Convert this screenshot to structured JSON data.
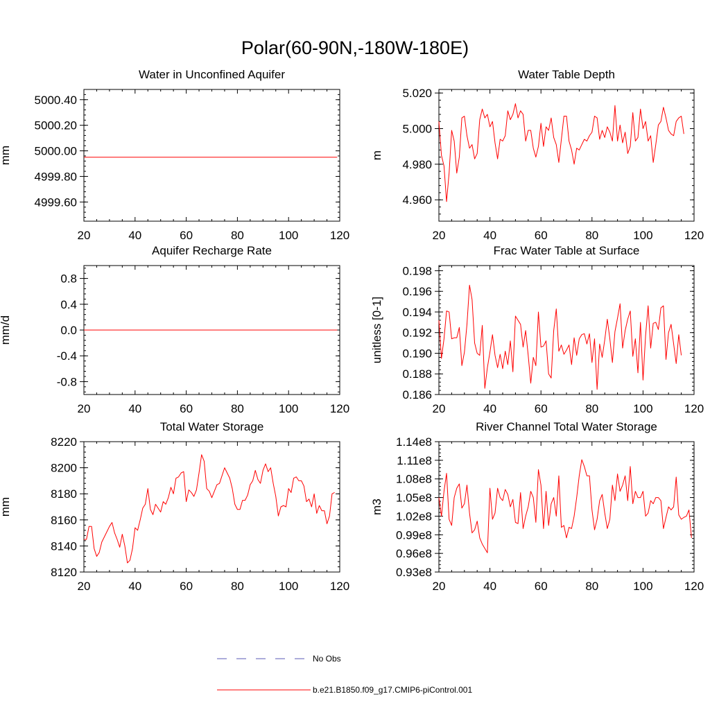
{
  "figure": {
    "title": "Polar(60-90N,-180W-180E)"
  },
  "colors": {
    "model": "#ff0000",
    "obs": "#5a5ab4",
    "axis": "#000000"
  },
  "legend": {
    "obs_label": "No Obs",
    "model_label": "b.e21.B1850.f09_g17.CMIP6-piControl.001"
  },
  "chart_data": [
    {
      "type": "line",
      "title": "Water in Unconfined Aquifer",
      "xlabel": "",
      "ylabel": "mm",
      "xlim": [
        20,
        120
      ],
      "ylim": [
        4999.45,
        5000.48
      ],
      "xticks": [
        20,
        40,
        60,
        80,
        100,
        120
      ],
      "xticklabels": [
        "20",
        "40",
        "60",
        "80",
        "100",
        "120"
      ],
      "yticks": [
        4999.6,
        4999.8,
        5000.0,
        5000.2,
        5000.4
      ],
      "yticklabels": [
        "4999.60",
        "4999.80",
        "5000.00",
        "5000.20",
        "5000.40"
      ],
      "series": [
        {
          "name": "b.e21.B1850.f09_g17.CMIP6-piControl.001",
          "x_start": 20,
          "x_step": 1,
          "values": [
            4999.95,
            4999.95,
            4999.95,
            4999.95,
            4999.95,
            4999.95,
            4999.95,
            4999.95,
            4999.95,
            4999.95,
            4999.95,
            4999.95,
            4999.95,
            4999.95,
            4999.95,
            4999.95,
            4999.95,
            4999.95,
            4999.95,
            4999.95,
            4999.95,
            4999.95,
            4999.95,
            4999.95,
            4999.95,
            4999.95,
            4999.95,
            4999.95,
            4999.95,
            4999.95,
            4999.95,
            4999.95,
            4999.95,
            4999.95,
            4999.95,
            4999.95,
            4999.95,
            4999.95,
            4999.95,
            4999.95,
            4999.95,
            4999.95,
            4999.95,
            4999.95,
            4999.95,
            4999.95,
            4999.95,
            4999.95,
            4999.95,
            4999.95,
            4999.95,
            4999.95,
            4999.95,
            4999.95,
            4999.95,
            4999.95,
            4999.95,
            4999.95,
            4999.95,
            4999.95,
            4999.95,
            4999.95,
            4999.95,
            4999.95,
            4999.95,
            4999.95,
            4999.95,
            4999.95,
            4999.95,
            4999.95,
            4999.95,
            4999.95,
            4999.95,
            4999.95,
            4999.95,
            4999.95,
            4999.95,
            4999.95,
            4999.95,
            4999.95,
            4999.95,
            4999.95,
            4999.95,
            4999.95,
            4999.95,
            4999.95,
            4999.95,
            4999.95,
            4999.95,
            4999.95,
            4999.95,
            4999.95,
            4999.95,
            4999.95,
            4999.95,
            4999.95,
            4999.95,
            4999.95,
            4999.95,
            4999.95
          ]
        }
      ]
    },
    {
      "type": "line",
      "title": "Water Table Depth",
      "xlabel": "",
      "ylabel": "m",
      "xlim": [
        20,
        120
      ],
      "ylim": [
        4.948,
        5.022
      ],
      "xticks": [
        20,
        40,
        60,
        80,
        100,
        120
      ],
      "xticklabels": [
        "20",
        "40",
        "60",
        "80",
        "100",
        "120"
      ],
      "yticks": [
        4.96,
        4.98,
        5.0,
        5.02
      ],
      "yticklabels": [
        "4.960",
        "4.980",
        "5.000",
        "5.020"
      ],
      "series": [
        {
          "name": "b.e21.B1850.f09_g17.CMIP6-piControl.001",
          "x_start": 20,
          "x_step": 1,
          "values": [
            5.004,
            4.985,
            4.979,
            4.959,
            4.975,
            4.999,
            4.993,
            4.975,
            4.984,
            5.006,
            5.007,
            4.996,
            4.989,
            4.991,
            4.983,
            4.986,
            5.005,
            5.011,
            5.006,
            5.008,
            5.001,
            5.004,
            4.992,
            4.983,
            4.994,
            4.993,
            4.996,
            5.01,
            5.005,
            5.008,
            5.014,
            5.006,
            5.01,
            5.008,
            4.993,
            4.999,
            4.999,
            4.989,
            4.984,
            4.99,
            5.003,
            4.99,
            5.001,
            4.999,
            5.006,
            4.995,
            4.991,
            4.981,
            4.994,
            5.007,
            5.007,
            4.993,
            4.988,
            4.98,
            4.989,
            4.988,
            4.991,
            4.994,
            4.993,
            4.996,
            4.998,
            5.007,
            5.006,
            4.994,
            4.999,
            4.995,
            5.001,
            4.998,
            4.993,
            5.013,
            4.993,
            5.002,
            4.992,
            4.998,
            4.986,
            4.99,
            5.009,
            4.993,
            4.995,
            5.011,
            5.0,
            5.004,
            4.993,
            4.996,
            4.981,
            4.991,
            5.002,
            5.004,
            5.012,
            5.006,
            4.999,
            4.997,
            4.996,
            5.004,
            5.006,
            5.007,
            4.997
          ]
        }
      ]
    },
    {
      "type": "line",
      "title": "Aquifer Recharge Rate",
      "xlabel": "",
      "ylabel": "mm/d",
      "xlim": [
        20,
        120
      ],
      "ylim": [
        -1.0,
        1.0
      ],
      "xticks": [
        20,
        40,
        60,
        80,
        100,
        120
      ],
      "xticklabels": [
        "20",
        "40",
        "60",
        "80",
        "100",
        "120"
      ],
      "yticks": [
        -0.8,
        -0.4,
        0.0,
        0.4,
        0.8
      ],
      "yticklabels": [
        "-0.8",
        "-0.4",
        "0.0",
        "0.4",
        "0.8"
      ],
      "series": [
        {
          "name": "b.e21.B1850.f09_g17.CMIP6-piControl.001",
          "x_start": 20,
          "x_step": 1,
          "values": [
            0,
            0,
            0,
            0,
            0,
            0,
            0,
            0,
            0,
            0,
            0,
            0,
            0,
            0,
            0,
            0,
            0,
            0,
            0,
            0,
            0,
            0,
            0,
            0,
            0,
            0,
            0,
            0,
            0,
            0,
            0,
            0,
            0,
            0,
            0,
            0,
            0,
            0,
            0,
            0,
            0,
            0,
            0,
            0,
            0,
            0,
            0,
            0,
            0,
            0,
            0,
            0,
            0,
            0,
            0,
            0,
            0,
            0,
            0,
            0,
            0,
            0,
            0,
            0,
            0,
            0,
            0,
            0,
            0,
            0,
            0,
            0,
            0,
            0,
            0,
            0,
            0,
            0,
            0,
            0,
            0,
            0,
            0,
            0,
            0,
            0,
            0,
            0,
            0,
            0,
            0,
            0,
            0,
            0,
            0,
            0,
            0,
            0,
            0,
            0
          ]
        }
      ]
    },
    {
      "type": "line",
      "title": "Frac Water Table at Surface",
      "xlabel": "",
      "ylabel": "unitless [0-1]",
      "xlim": [
        20,
        120
      ],
      "ylim": [
        0.186,
        0.1985
      ],
      "xticks": [
        20,
        40,
        60,
        80,
        100,
        120
      ],
      "xticklabels": [
        "20",
        "40",
        "60",
        "80",
        "100",
        "120"
      ],
      "yticks": [
        0.186,
        0.188,
        0.19,
        0.192,
        0.194,
        0.196,
        0.198
      ],
      "yticklabels": [
        "0.186",
        "0.188",
        "0.190",
        "0.192",
        "0.194",
        "0.196",
        "0.198"
      ],
      "series": [
        {
          "name": "b.e21.B1850.f09_g17.CMIP6-piControl.001",
          "x_start": 20,
          "x_step": 1,
          "values": [
            0.1932,
            0.1895,
            0.1914,
            0.1941,
            0.194,
            0.1914,
            0.1915,
            0.1915,
            0.1925,
            0.1888,
            0.1901,
            0.1928,
            0.1966,
            0.1952,
            0.191,
            0.19,
            0.1898,
            0.1927,
            0.1866,
            0.1886,
            0.1901,
            0.1918,
            0.1898,
            0.1886,
            0.1899,
            0.1885,
            0.1902,
            0.1889,
            0.1912,
            0.1882,
            0.1936,
            0.1932,
            0.1928,
            0.1906,
            0.1922,
            0.1898,
            0.1871,
            0.1896,
            0.1888,
            0.194,
            0.1906,
            0.1907,
            0.1912,
            0.188,
            0.1876,
            0.1922,
            0.1943,
            0.1902,
            0.1908,
            0.1899,
            0.1903,
            0.1908,
            0.1889,
            0.1915,
            0.1898,
            0.1914,
            0.1918,
            0.1919,
            0.1909,
            0.1919,
            0.1891,
            0.1914,
            0.1865,
            0.1909,
            0.1896,
            0.1913,
            0.1933,
            0.1914,
            0.1891,
            0.1921,
            0.1934,
            0.1948,
            0.1905,
            0.1922,
            0.1933,
            0.1941,
            0.1897,
            0.1914,
            0.1881,
            0.193,
            0.1874,
            0.1917,
            0.1946,
            0.1905,
            0.1929,
            0.193,
            0.1923,
            0.1944,
            0.1946,
            0.1894,
            0.192,
            0.1928,
            0.1909,
            0.189,
            0.1918,
            0.1898
          ]
        }
      ]
    },
    {
      "type": "line",
      "title": "Total Water Storage",
      "xlabel": "",
      "ylabel": "mm",
      "xlim": [
        20,
        120
      ],
      "ylim": [
        8120,
        8220
      ],
      "xticks": [
        20,
        40,
        60,
        80,
        100,
        120
      ],
      "xticklabels": [
        "20",
        "40",
        "60",
        "80",
        "100",
        "120"
      ],
      "yticks": [
        8120,
        8140,
        8160,
        8180,
        8200,
        8220
      ],
      "yticklabels": [
        "8120",
        "8140",
        "8160",
        "8180",
        "8200",
        "8220"
      ],
      "series": [
        {
          "name": "b.e21.B1850.f09_g17.CMIP6-piControl.001",
          "x_start": 20,
          "x_step": 1,
          "values": [
            8145,
            8145,
            8155,
            8155,
            8138,
            8132,
            8135,
            8143,
            8147,
            8151,
            8155,
            8158,
            8150,
            8145,
            8139,
            8149,
            8140,
            8127,
            8129,
            8138,
            8154,
            8152,
            8160,
            8169,
            8172,
            8184,
            8168,
            8164,
            8172,
            8169,
            8166,
            8174,
            8172,
            8177,
            8185,
            8180,
            8192,
            8193,
            8196,
            8197,
            8174,
            8183,
            8181,
            8178,
            8183,
            8196,
            8210,
            8205,
            8184,
            8182,
            8177,
            8182,
            8187,
            8188,
            8194,
            8200,
            8196,
            8192,
            8184,
            8172,
            8168,
            8168,
            8175,
            8175,
            8179,
            8187,
            8190,
            8198,
            8191,
            8188,
            8198,
            8203,
            8197,
            8200,
            8188,
            8178,
            8163,
            8170,
            8171,
            8170,
            8184,
            8181,
            8192,
            8193,
            8190,
            8190,
            8186,
            8174,
            8176,
            8170,
            8180,
            8165,
            8171,
            8167,
            8167,
            8157,
            8163,
            8180,
            8181
          ]
        }
      ]
    },
    {
      "type": "line",
      "title": "River Channel Total Water Storage",
      "xlabel": "",
      "ylabel": "m3",
      "xlim": [
        20,
        120
      ],
      "ylim": [
        93000000.0,
        114000000.0
      ],
      "xticks": [
        20,
        40,
        60,
        80,
        100,
        120
      ],
      "xticklabels": [
        "20",
        "40",
        "60",
        "80",
        "100",
        "120"
      ],
      "yticks": [
        93000000.0,
        96000000.0,
        99000000.0,
        102000000.0,
        105000000.0,
        108000000.0,
        111000000.0,
        114000000.0
      ],
      "yticklabels": [
        "0.93e8",
        "0.96e8",
        "0.99e8",
        "1.02e8",
        "1.05e8",
        "1.08e8",
        "1.11e8",
        "1.14e8"
      ],
      "series": [
        {
          "name": "b.e21.B1850.f09_g17.CMIP6-piControl.001",
          "x_start": 20,
          "x_step": 1,
          "values": [
            105000000.0,
            102000000.0,
            106000000.0,
            108900000.0,
            101500000.0,
            100500000.0,
            105000000.0,
            106500000.0,
            107200000.0,
            103300000.0,
            104000000.0,
            107000000.0,
            102500000.0,
            99300000.0,
            99800000.0,
            101200000.0,
            98500000.0,
            97500000.0,
            96800000.0,
            96100000.0,
            106500000.0,
            101500000.0,
            102500000.0,
            106500000.0,
            105000000.0,
            104500000.0,
            106300000.0,
            105500000.0,
            103500000.0,
            104700000.0,
            101000000.0,
            100800000.0,
            105800000.0,
            100000000.0,
            102000000.0,
            103500000.0,
            106000000.0,
            105000000.0,
            101000000.0,
            109500000.0,
            107000000.0,
            100000000.0,
            106000000.0,
            100500000.0,
            104000000.0,
            105000000.0,
            102000000.0,
            108500000.0,
            100200000.0,
            100500000.0,
            98500000.0,
            100200000.0,
            100000000.0,
            102000000.0,
            105000000.0,
            108500000.0,
            111100000.0,
            110000000.0,
            108500000.0,
            108500000.0,
            103000000.0,
            99800000.0,
            101500000.0,
            104500000.0,
            105500000.0,
            102500000.0,
            100000000.0,
            101500000.0,
            107000000.0,
            104500000.0,
            108800000.0,
            106000000.0,
            107000000.0,
            108500000.0,
            104500000.0,
            110000000.0,
            104000000.0,
            106000000.0,
            105000000.0,
            105000000.0,
            106000000.0,
            102000000.0,
            102500000.0,
            104500000.0,
            104000000.0,
            105000000.0,
            105000000.0,
            104500000.0,
            100000000.0,
            101800000.0,
            103500000.0,
            103000000.0,
            103500000.0,
            108300000.0,
            102200000.0,
            101500000.0,
            101800000.0,
            102000000.0,
            103000000.0,
            98500000.0
          ]
        }
      ]
    }
  ]
}
